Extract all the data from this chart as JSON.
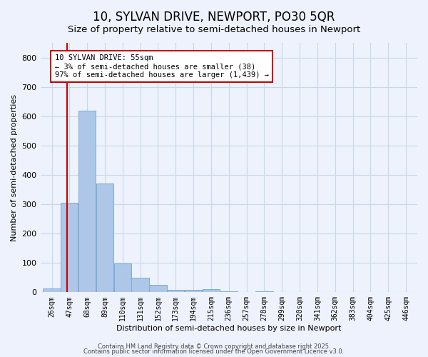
{
  "title": "10, SYLVAN DRIVE, NEWPORT, PO30 5QR",
  "subtitle": "Size of property relative to semi-detached houses in Newport",
  "xlabel": "Distribution of semi-detached houses by size in Newport",
  "ylabel": "Number of semi-detached properties",
  "bin_labels": [
    "26sqm",
    "47sqm",
    "68sqm",
    "89sqm",
    "110sqm",
    "131sqm",
    "152sqm",
    "173sqm",
    "194sqm",
    "215sqm",
    "236sqm",
    "257sqm",
    "278sqm",
    "299sqm",
    "320sqm",
    "341sqm",
    "362sqm",
    "383sqm",
    "404sqm",
    "425sqm",
    "446sqm"
  ],
  "bin_edges": [
    26,
    47,
    68,
    89,
    110,
    131,
    152,
    173,
    194,
    215,
    236,
    257,
    278,
    299,
    320,
    341,
    362,
    383,
    404,
    425,
    446
  ],
  "bar_heights": [
    12,
    305,
    620,
    370,
    98,
    50,
    25,
    8,
    7,
    10,
    3,
    0,
    4,
    0,
    0,
    0,
    0,
    0,
    0,
    0
  ],
  "bar_color": "#aec6e8",
  "bar_edgecolor": "#7aadd4",
  "grid_color": "#c8d8e8",
  "background_color": "#eef2fc",
  "red_line_x": 55,
  "annotation_text": "10 SYLVAN DRIVE: 55sqm\n← 3% of semi-detached houses are smaller (38)\n97% of semi-detached houses are larger (1,439) →",
  "annotation_box_color": "#ffffff",
  "annotation_border_color": "#cc0000",
  "footer1": "Contains HM Land Registry data © Crown copyright and database right 2025.",
  "footer2": "Contains public sector information licensed under the Open Government Licence v3.0.",
  "ylim": [
    0,
    850
  ],
  "yticks": [
    0,
    100,
    200,
    300,
    400,
    500,
    600,
    700,
    800
  ],
  "title_fontsize": 12,
  "subtitle_fontsize": 9.5
}
